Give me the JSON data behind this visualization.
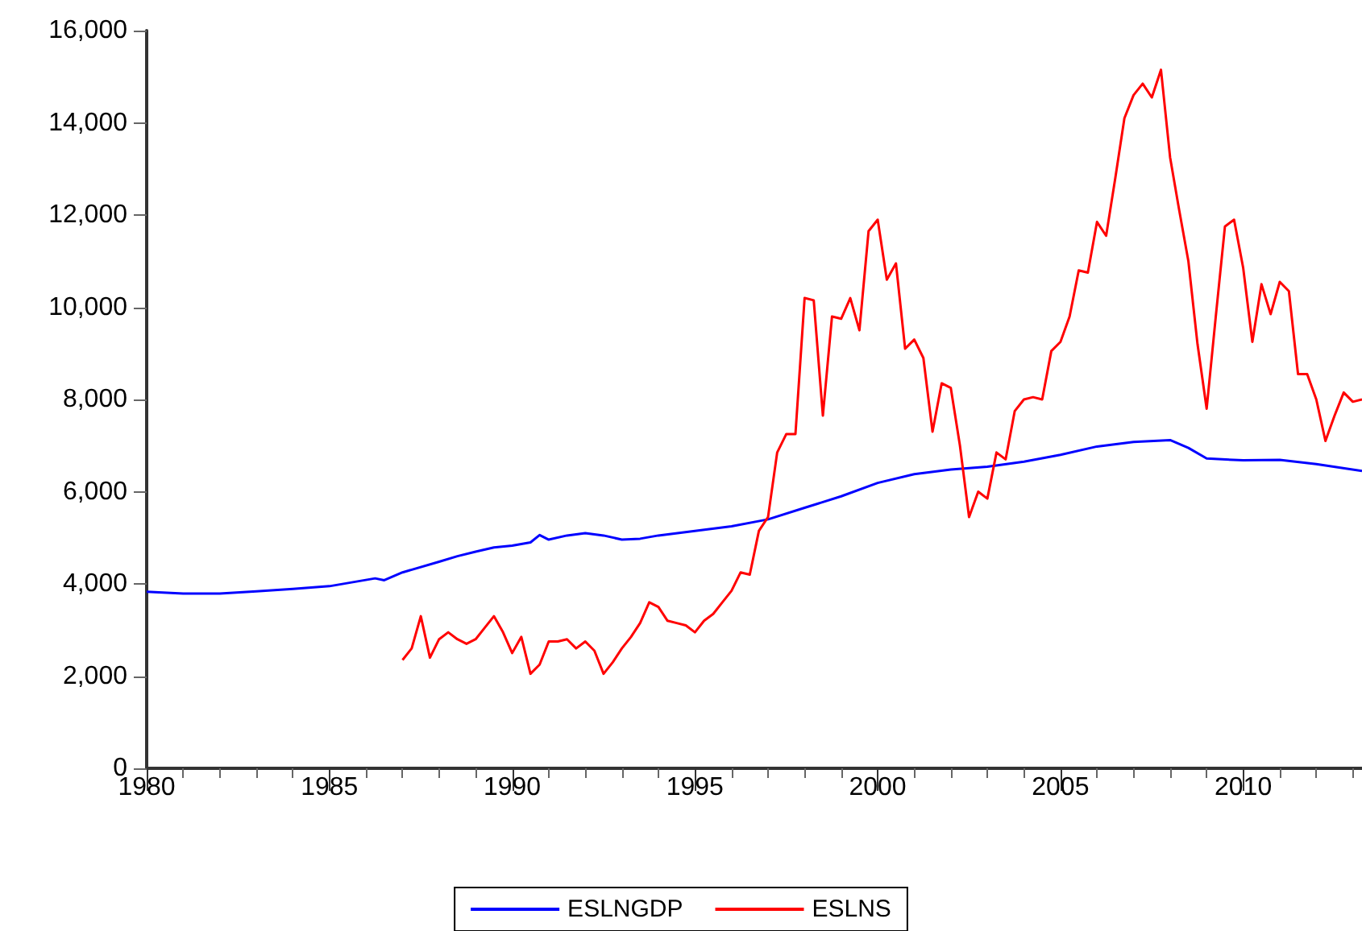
{
  "chart_data": {
    "type": "line",
    "xlim": [
      1980,
      2013.25
    ],
    "xticks": [
      1980,
      1985,
      1990,
      1995,
      2000,
      2005,
      2010
    ],
    "ylim": [
      0,
      16000
    ],
    "yticks": [
      {
        "value": 0,
        "label": "0"
      },
      {
        "value": 2000,
        "label": "2,000"
      },
      {
        "value": 4000,
        "label": "4,000"
      },
      {
        "value": 6000,
        "label": "6,000"
      },
      {
        "value": 8000,
        "label": "8,000"
      },
      {
        "value": 10000,
        "label": "10,000"
      },
      {
        "value": 12000,
        "label": "12,000"
      },
      {
        "value": 14000,
        "label": "14,000"
      },
      {
        "value": 16000,
        "label": "16,000"
      }
    ],
    "grid": false,
    "legend": "bottom",
    "marker": "none",
    "line_style": "solid",
    "series": [
      {
        "name": "ESLNGDP",
        "color": "#0000ff",
        "x": [
          1980,
          1981,
          1982,
          1983,
          1984,
          1985,
          1986.25,
          1986.5,
          1987,
          1988,
          1988.5,
          1989,
          1989.5,
          1990,
          1990.5,
          1990.75,
          1991,
          1991.5,
          1992,
          1992.5,
          1993,
          1993.5,
          1994,
          1995,
          1996,
          1997,
          1998,
          1999,
          2000,
          2001,
          2002,
          2003,
          2004,
          2005,
          2006,
          2007,
          2008,
          2008.5,
          2009,
          2010,
          2011,
          2012,
          2013.25
        ],
        "values": [
          3830,
          3790,
          3790,
          3840,
          3890,
          3950,
          4120,
          4080,
          4250,
          4480,
          4600,
          4700,
          4790,
          4830,
          4900,
          5060,
          4960,
          5050,
          5100,
          5050,
          4960,
          4980,
          5050,
          5150,
          5250,
          5400,
          5650,
          5900,
          6190,
          6380,
          6480,
          6540,
          6650,
          6800,
          6980,
          7080,
          7120,
          6950,
          6720,
          6680,
          6690,
          6600,
          6450
        ]
      },
      {
        "name": "ESLNS",
        "color": "#ff0000",
        "x": [
          1987,
          1987.25,
          1987.5,
          1987.75,
          1988,
          1988.25,
          1988.5,
          1988.75,
          1989,
          1989.25,
          1989.5,
          1989.75,
          1990,
          1990.25,
          1990.5,
          1990.75,
          1991,
          1991.25,
          1991.5,
          1991.75,
          1992,
          1992.25,
          1992.5,
          1992.75,
          1993,
          1993.25,
          1993.5,
          1993.75,
          1994,
          1994.25,
          1994.5,
          1994.75,
          1995,
          1995.25,
          1995.5,
          1995.75,
          1996,
          1996.25,
          1996.5,
          1996.75,
          1997,
          1997.25,
          1997.5,
          1997.75,
          1998,
          1998.25,
          1998.5,
          1998.75,
          1999,
          1999.25,
          1999.5,
          1999.75,
          2000,
          2000.25,
          2000.5,
          2000.75,
          2001,
          2001.25,
          2001.5,
          2001.75,
          2002,
          2002.25,
          2002.5,
          2002.75,
          2003,
          2003.25,
          2003.5,
          2003.75,
          2004,
          2004.25,
          2004.5,
          2004.75,
          2005,
          2005.25,
          2005.5,
          2005.75,
          2006,
          2006.25,
          2006.5,
          2006.75,
          2007,
          2007.25,
          2007.5,
          2007.75,
          2008,
          2008.25,
          2008.5,
          2008.75,
          2009,
          2009.25,
          2009.5,
          2009.75,
          2010,
          2010.25,
          2010.5,
          2010.75,
          2011,
          2011.25,
          2011.5,
          2011.75,
          2012,
          2012.25,
          2012.5,
          2012.75,
          2013,
          2013.25
        ],
        "values": [
          2350,
          2600,
          3300,
          2400,
          2800,
          2950,
          2800,
          2700,
          2800,
          3050,
          3300,
          2950,
          2500,
          2850,
          2050,
          2250,
          2750,
          2750,
          2800,
          2600,
          2750,
          2550,
          2050,
          2300,
          2600,
          2850,
          3150,
          3600,
          3500,
          3200,
          3150,
          3100,
          2950,
          3200,
          3350,
          3600,
          3850,
          4250,
          4200,
          5150,
          5450,
          6850,
          7250,
          7250,
          10200,
          10150,
          7650,
          9800,
          9750,
          10200,
          9500,
          11650,
          11900,
          10600,
          10950,
          9100,
          9300,
          8900,
          7300,
          8350,
          8250,
          7000,
          5450,
          6000,
          5850,
          6850,
          6700,
          7750,
          8000,
          8050,
          8000,
          9050,
          9250,
          9800,
          10800,
          10750,
          11850,
          11550,
          12800,
          14100,
          14600,
          14850,
          14550,
          15150,
          13250,
          12100,
          11000,
          9200,
          7800,
          9800,
          11750,
          11900,
          10850,
          9250,
          10500,
          9850,
          10550,
          10350,
          8550,
          8550,
          8000,
          7100,
          7650,
          8150,
          7950,
          8000
        ]
      }
    ]
  }
}
